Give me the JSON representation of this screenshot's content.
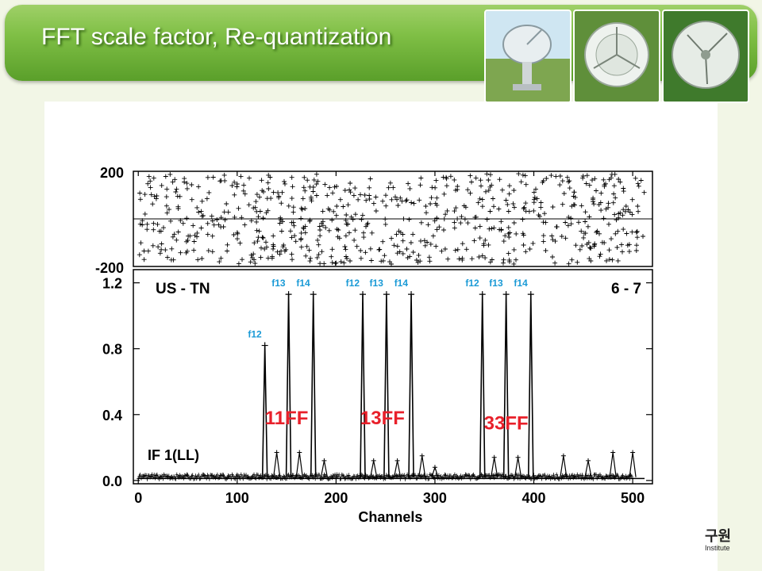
{
  "header": {
    "title": "FFT scale factor, Re-quantization"
  },
  "logo": {
    "text": "구원",
    "subtext": "Institute"
  },
  "chart_data": [
    {
      "type": "scatter",
      "panel": "phase",
      "ytick_labels": [
        "200",
        "-200"
      ],
      "ylim": [
        -200,
        200
      ],
      "xlim": [
        -5,
        520
      ],
      "grid": "horizontal line at 0"
    },
    {
      "type": "line",
      "panel": "amplitude",
      "xlabel": "Channels",
      "xlim": [
        -5,
        520
      ],
      "ylim": [
        -0.02,
        1.28
      ],
      "xticks": [
        0,
        100,
        200,
        300,
        400,
        500
      ],
      "xtick_labels": [
        "0",
        "100",
        "200",
        "300",
        "400",
        "500"
      ],
      "yticks": [
        0.0,
        0.4,
        0.8,
        1.2
      ],
      "ytick_labels": [
        "0.0",
        "0.4",
        "0.8",
        "1.2"
      ],
      "peaks": [
        {
          "x": 128,
          "y": 0.82,
          "label": "f12"
        },
        {
          "x": 152,
          "y": 1.13,
          "label": "f13"
        },
        {
          "x": 177,
          "y": 1.13,
          "label": "f14"
        },
        {
          "x": 227,
          "y": 1.13,
          "label": "f12"
        },
        {
          "x": 251,
          "y": 1.13,
          "label": "f13"
        },
        {
          "x": 276,
          "y": 1.13,
          "label": "f14"
        },
        {
          "x": 348,
          "y": 1.13,
          "label": "f12"
        },
        {
          "x": 372,
          "y": 1.13,
          "label": "f13"
        },
        {
          "x": 397,
          "y": 1.13,
          "label": "f14"
        }
      ],
      "small_peaks": [
        {
          "x": 140,
          "y": 0.17
        },
        {
          "x": 163,
          "y": 0.17
        },
        {
          "x": 188,
          "y": 0.12
        },
        {
          "x": 238,
          "y": 0.12
        },
        {
          "x": 262,
          "y": 0.12
        },
        {
          "x": 287,
          "y": 0.15
        },
        {
          "x": 300,
          "y": 0.08
        },
        {
          "x": 360,
          "y": 0.14
        },
        {
          "x": 384,
          "y": 0.14
        },
        {
          "x": 430,
          "y": 0.15
        },
        {
          "x": 455,
          "y": 0.12
        },
        {
          "x": 480,
          "y": 0.17
        },
        {
          "x": 500,
          "y": 0.17
        }
      ],
      "annotations": {
        "source": "US - TN",
        "baseline": "6 - 7",
        "if_label": "IF 1(LL)",
        "groups": [
          "11FF",
          "13FF",
          "33FF"
        ]
      },
      "colors": {
        "peak_labels": "#1a9ad6",
        "group_labels": "#e8202a",
        "data": "#000000"
      }
    }
  ]
}
